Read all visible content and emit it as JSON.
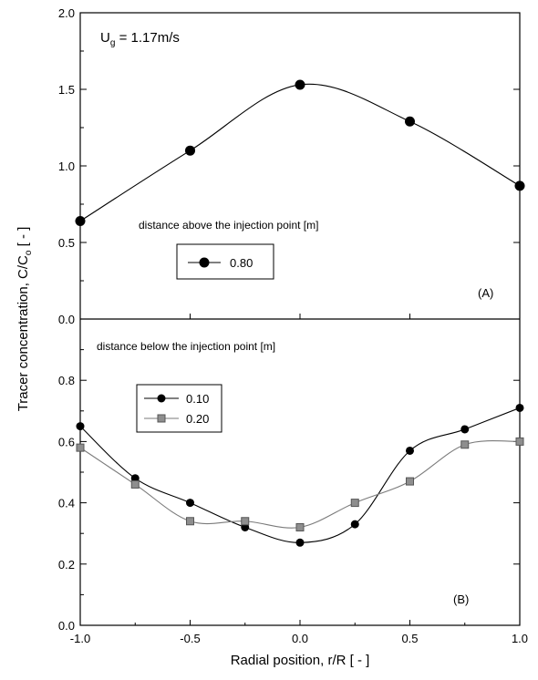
{
  "chart_data": [
    {
      "panel": "(A)",
      "type": "line",
      "annotation": "U",
      "annotation_sub": "g",
      "annotation_rest": " = 1.17m/s",
      "legend_title": "distance above the injection point [m]",
      "xlim": [
        -1.0,
        1.0
      ],
      "ylim": [
        0.0,
        2.0
      ],
      "y_ticks": [
        "0.0",
        "0.5",
        "1.0",
        "1.5",
        "2.0"
      ],
      "series": [
        {
          "name": "0.80",
          "marker": "circle",
          "color": "#000000",
          "x": [
            -1.0,
            -0.5,
            0.0,
            0.5,
            1.0
          ],
          "y": [
            0.64,
            1.1,
            1.53,
            1.29,
            0.87
          ]
        }
      ]
    },
    {
      "panel": "(B)",
      "type": "line",
      "legend_title": "distance below the injection point [m]",
      "xlim": [
        -1.0,
        1.0
      ],
      "ylim": [
        0.0,
        1.0
      ],
      "y_ticks": [
        "0.0",
        "0.2",
        "0.4",
        "0.6",
        "0.8"
      ],
      "series": [
        {
          "name": "0.10",
          "marker": "circle",
          "color": "#000000",
          "x": [
            -1.0,
            -0.75,
            -0.5,
            -0.25,
            0.0,
            0.25,
            0.5,
            0.75,
            1.0
          ],
          "y": [
            0.65,
            0.48,
            0.4,
            0.32,
            0.27,
            0.33,
            0.57,
            0.64,
            0.71
          ]
        },
        {
          "name": "0.20",
          "marker": "square",
          "color": "#7a7a7a",
          "x": [
            -1.0,
            -0.75,
            -0.5,
            -0.25,
            0.0,
            0.25,
            0.5,
            0.75,
            1.0
          ],
          "y": [
            0.58,
            0.46,
            0.34,
            0.34,
            0.32,
            0.4,
            0.47,
            0.59,
            0.6
          ]
        }
      ]
    }
  ],
  "x_ticks": [
    "-1.0",
    "-0.5",
    "0.0",
    "0.5",
    "1.0"
  ],
  "xlabel": "Radial position, r/R  [ - ]",
  "ylabel": "Tracer concentration, C/C",
  "ylabel_sub": "o",
  "ylabel_rest": "  [ - ]"
}
